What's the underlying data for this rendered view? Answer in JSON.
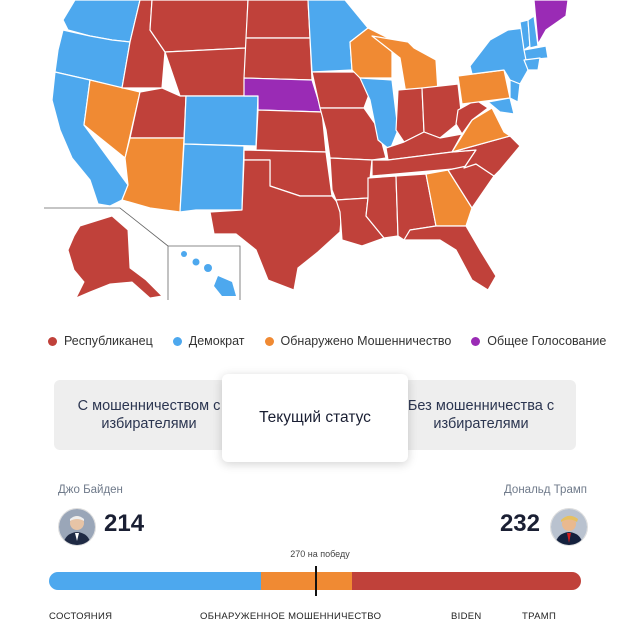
{
  "colors": {
    "republican": "#c0413a",
    "democrat": "#4da8ee",
    "fraud": "#f08a33",
    "popular": "#9a2bb5",
    "ocean": "#ffffff",
    "border": "#ffffff"
  },
  "legend": {
    "items": [
      {
        "label": "Республиканец",
        "color": "#c0413a"
      },
      {
        "label": "Демократ",
        "color": "#4da8ee"
      },
      {
        "label": "Обнаружено Мошенничество",
        "color": "#f08a33"
      },
      {
        "label": "Общее Голосование",
        "color": "#9a2bb5"
      }
    ]
  },
  "tabs": {
    "left": "С мошенничеством с избирателями",
    "active": "Текущий статус",
    "right": "Без мошенничества с избирателями"
  },
  "candidates": {
    "left": {
      "name": "Джо Байден",
      "votes": "214",
      "avatar_icon": "biden-avatar-icon"
    },
    "right": {
      "name": "Дональд Трамп",
      "votes": "232",
      "avatar_icon": "trump-avatar-icon"
    }
  },
  "to_win": "270 на победу",
  "progress": {
    "total": 538,
    "democrat": 214,
    "fraud": 92,
    "republican": 232
  },
  "bottom_labels": {
    "states": "СОСТОЯНИЯ",
    "fraud": "ОБНАРУЖЕННОЕ МОШЕННИЧЕСТВО",
    "biden": "BIDEN",
    "trump": "ТРАМП"
  }
}
